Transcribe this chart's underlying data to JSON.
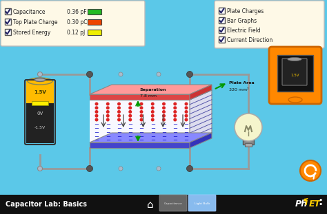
{
  "bg_color": "#5bc8e8",
  "bottom_bar_color": "#111111",
  "title": "Capacitor Lab: Basics",
  "panel_bg": "#fef9e7",
  "checkboxes": [
    {
      "label": "Capacitance",
      "value": "0.36 pF",
      "color": "#22bb22"
    },
    {
      "label": "Top Plate Charge",
      "value": "0.30 pC",
      "color": "#ee4400"
    },
    {
      "label": "Stored Energy",
      "value": "0.12 pJ",
      "color": "#eeee00"
    }
  ],
  "right_panel_items": [
    "Plate Charges",
    "Bar Graphs",
    "Electric Field",
    "Current Direction"
  ],
  "separation_text1": "Separation",
  "separation_text2": "7.8 mm",
  "plate_area_text1": "Plate Area",
  "plate_area_text2": "320 mm²",
  "wire_color": "#999999",
  "node_color": "#555555",
  "bat_body": "#222222",
  "bat_top_cap": "#888888",
  "bat_yellow": "#ffbb00",
  "bat_label1": "1.5V",
  "bat_label2": "0V",
  "bat_label3": "-1.5V",
  "top_plate_color": "#ff6666",
  "bot_plate_color": "#8888ff",
  "cap_space_color": "#ffffff",
  "plus_color": "#cc0000",
  "minus_color": "#2222cc",
  "efield_color": "#333333",
  "side_line_color": "#5555aa",
  "arrow_color": "#009900",
  "bulb_glass": "#f5f5cc",
  "bulb_base": "#888888",
  "bulb_metal": "#666666",
  "orange_dev": "#ff8800",
  "orange_btn": "#ff8800",
  "refresh_color": "#ffffff",
  "phet_white": "#ffffff",
  "phet_yellow": "#ffcc00"
}
